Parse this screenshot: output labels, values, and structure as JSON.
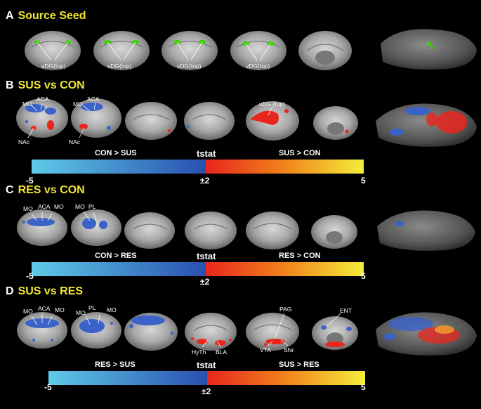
{
  "panels": [
    {
      "letter": "A",
      "title": "Source Seed",
      "labels": [
        "vDG(top)",
        "vDG(top)",
        "vDG(top)",
        "vDG(top)"
      ]
    },
    {
      "letter": "B",
      "title": "SUS vs CON",
      "labels": {
        "mo1": "MO",
        "aca1": "ACA",
        "nac1": "NAc",
        "mo2": "MO",
        "aca2": "ACA",
        "nac2": "NAc",
        "vdg": "vDG (top)"
      },
      "colorbar": {
        "left_text": "CON > SUS",
        "center_text": "tstat",
        "right_text": "SUS > CON",
        "min": "-5",
        "mid": "±2",
        "max": "5"
      }
    },
    {
      "letter": "C",
      "title": "RES vs CON",
      "labels": {
        "mo1": "MO",
        "aca1": "ACA",
        "mo1b": "MO",
        "mo2": "MO",
        "pl2": "PL"
      },
      "colorbar": {
        "left_text": "CON > RES",
        "center_text": "tstat",
        "right_text": "RES > CON",
        "min": "-5",
        "mid": "±2",
        "max": "5"
      }
    },
    {
      "letter": "D",
      "title": "SUS vs RES",
      "labels": {
        "mo1": "MO",
        "aca1": "ACA",
        "mo1b": "MO",
        "pl2": "PL",
        "mo2": "MO",
        "mo2b": "MO",
        "hyth": "HyTh",
        "bla": "BLA",
        "pag": "PAG",
        "vta": "VTA",
        "snr": "SNr",
        "ent": "ENT"
      },
      "colorbar": {
        "left_text": "RES > SUS",
        "center_text": "tstat",
        "right_text": "SUS > RES",
        "min": "-5",
        "mid": "±2",
        "max": "5"
      }
    }
  ],
  "colors": {
    "title": "#f2e630",
    "seed": "#39d400",
    "neg_start": "#5ecbe8",
    "neg_end": "#2a4fb0",
    "pos_start": "#e8261d",
    "pos_end": "#f5ec3a"
  }
}
